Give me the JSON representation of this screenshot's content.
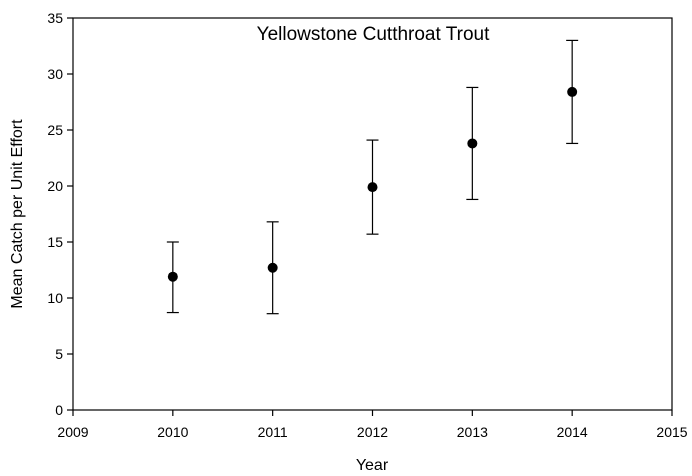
{
  "chart_data": {
    "type": "scatter",
    "title": "Yellowstone Cutthroat Trout",
    "xlabel": "Year",
    "ylabel": "Mean Catch per Unit Effort",
    "xlim": [
      2009,
      2015
    ],
    "ylim": [
      0,
      35
    ],
    "x_ticks": [
      2009,
      2010,
      2011,
      2012,
      2013,
      2014,
      2015
    ],
    "y_ticks": [
      0,
      5,
      10,
      15,
      20,
      25,
      30,
      35
    ],
    "grid": false,
    "legend": "none",
    "marker_color": "#000000",
    "points": [
      {
        "x": 2010,
        "y": 11.9,
        "err_low": 8.7,
        "err_high": 15.0
      },
      {
        "x": 2011,
        "y": 12.7,
        "err_low": 8.6,
        "err_high": 16.8
      },
      {
        "x": 2012,
        "y": 19.9,
        "err_low": 15.7,
        "err_high": 24.1
      },
      {
        "x": 2013,
        "y": 23.8,
        "err_low": 18.8,
        "err_high": 28.8
      },
      {
        "x": 2014,
        "y": 28.4,
        "err_low": 23.8,
        "err_high": 33.0
      }
    ]
  }
}
